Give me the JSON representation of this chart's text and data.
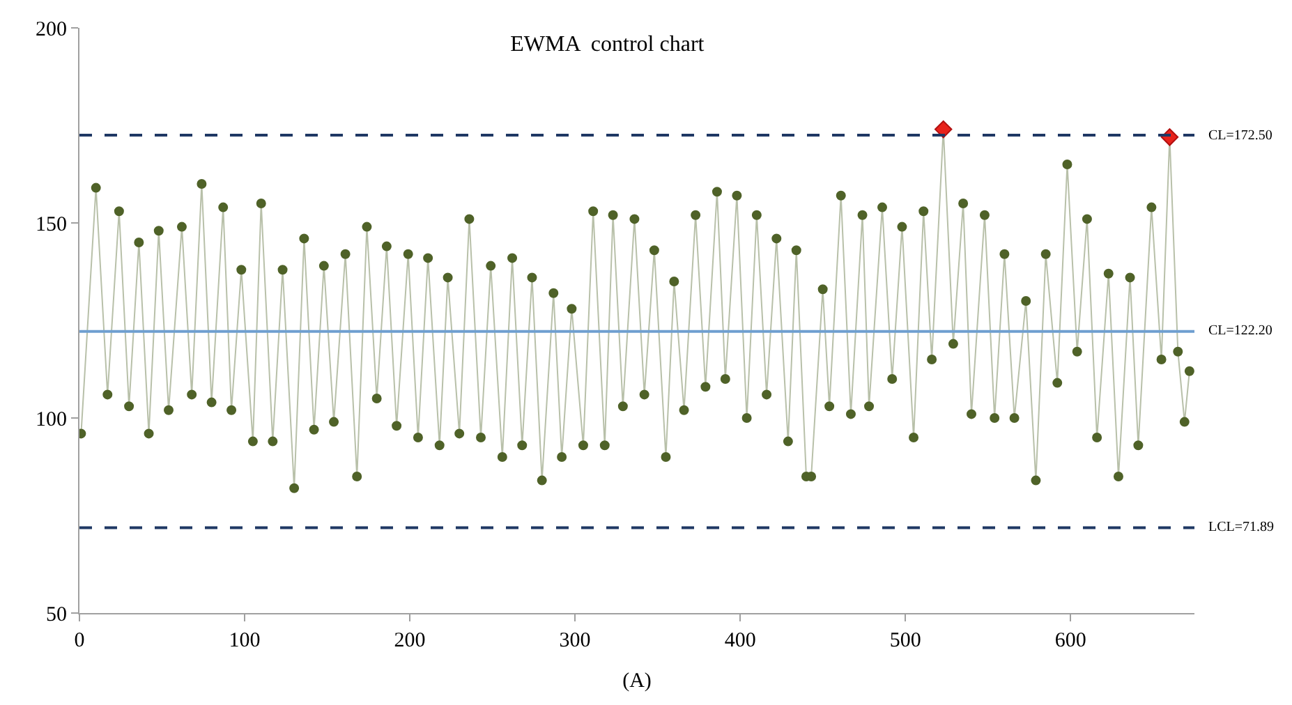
{
  "chart_data": {
    "type": "line",
    "title": "EWMA  control chart",
    "xlabel": "(A)",
    "xlim": [
      0,
      675
    ],
    "xticks": [
      0,
      100,
      200,
      300,
      400,
      500,
      600
    ],
    "ylim": [
      50,
      200
    ],
    "yticks": [
      50,
      100,
      150,
      200
    ],
    "marker": "circle",
    "line_style": "solid",
    "series": [
      {
        "color": "#4f6228",
        "x": [
          1,
          10,
          17,
          24,
          30,
          36,
          42,
          48,
          54,
          62,
          68,
          74,
          80,
          87,
          92,
          98,
          105,
          110,
          117,
          123,
          130,
          136,
          142,
          148,
          154,
          161,
          168,
          174,
          180,
          186,
          192,
          199,
          205,
          211,
          218,
          223,
          230,
          236,
          243,
          249,
          256,
          262,
          268,
          274,
          280,
          287,
          292,
          298,
          305,
          311,
          318,
          323,
          329,
          336,
          342,
          348,
          355,
          360,
          366,
          373,
          379,
          386,
          391,
          398,
          404,
          410,
          416,
          422,
          429,
          434,
          440,
          443,
          450,
          454,
          461,
          467,
          474,
          478,
          486,
          492,
          498,
          505,
          511,
          516,
          523,
          529,
          535,
          540,
          548,
          554,
          560,
          566,
          573,
          579,
          585,
          592,
          598,
          604,
          610,
          616,
          623,
          629,
          636,
          641,
          649,
          655,
          660,
          665,
          669,
          672
        ],
        "values": [
          96,
          159,
          106,
          153,
          103,
          145,
          96,
          148,
          102,
          149,
          106,
          160,
          104,
          154,
          102,
          138,
          94,
          155,
          94,
          138,
          82,
          146,
          97,
          139,
          99,
          142,
          85,
          149,
          105,
          144,
          98,
          142,
          95,
          141,
          93,
          136,
          96,
          151,
          95,
          139,
          90,
          141,
          93,
          136,
          84,
          132,
          90,
          128,
          93,
          153,
          93,
          152,
          103,
          151,
          106,
          143,
          90,
          135,
          102,
          152,
          108,
          158,
          110,
          157,
          100,
          152,
          106,
          146,
          94,
          143,
          85,
          85,
          133,
          103,
          157,
          101,
          152,
          103,
          154,
          110,
          149,
          95,
          153,
          115,
          174,
          119,
          155,
          101,
          152,
          100,
          142,
          100,
          130,
          84,
          142,
          109,
          165,
          117,
          151,
          95,
          137,
          85,
          136,
          93,
          154,
          115,
          172,
          117,
          99,
          112
        ]
      },
      {
        "color": "#e8221b",
        "type": "scatter",
        "marker": "diamond",
        "x": [
          523,
          660
        ],
        "values": [
          174,
          172
        ]
      }
    ],
    "ref_lines": [
      {
        "axis": "y",
        "value": 172.5,
        "label": "CL=172.50",
        "color": "#1f3864",
        "line_style": "dashed"
      },
      {
        "axis": "y",
        "value": 122.2,
        "label": "CL=122.20",
        "color": "#6f9fd0",
        "line_style": "solid"
      },
      {
        "axis": "y",
        "value": 71.89,
        "label": "LCL=71.89",
        "color": "#1f3864",
        "line_style": "dashed"
      }
    ]
  }
}
